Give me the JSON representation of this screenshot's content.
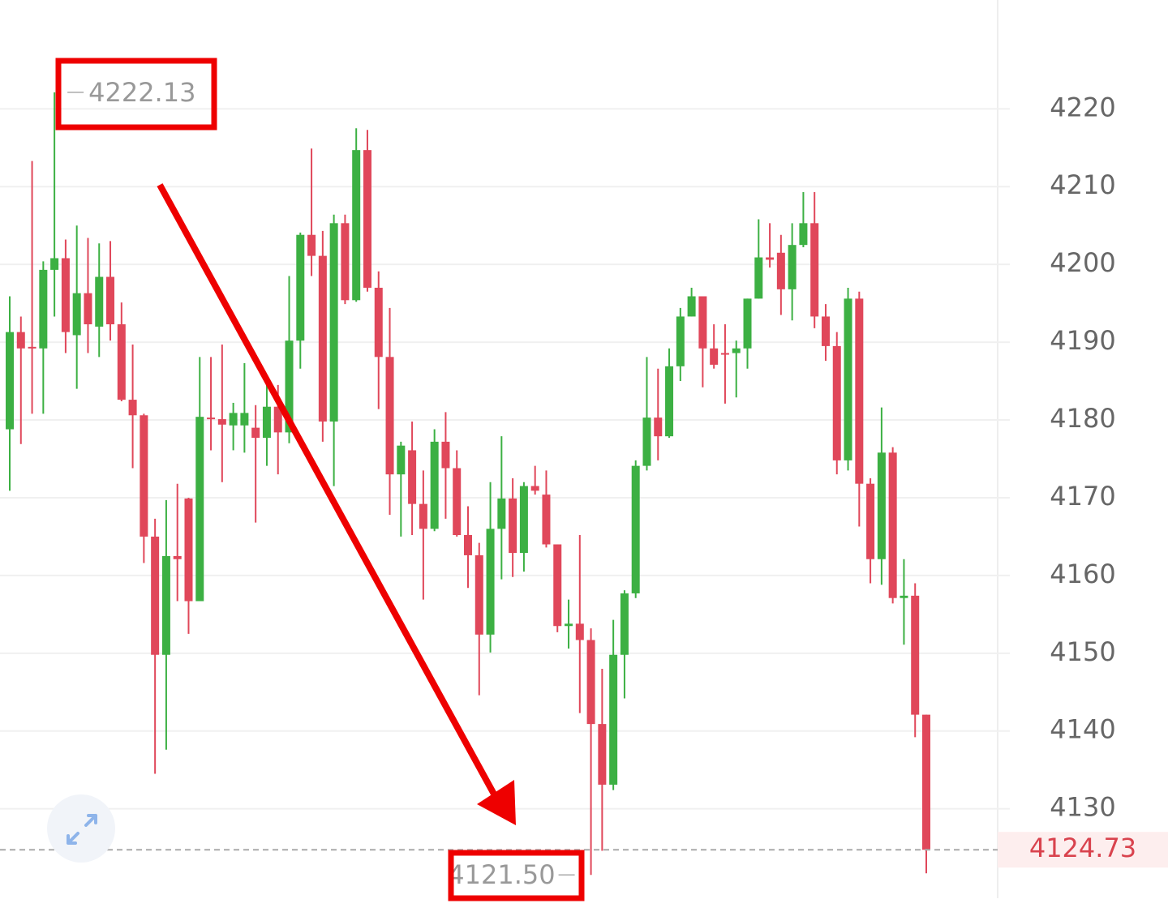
{
  "chart_data": {
    "type": "candlestick",
    "up_color": "#3cb043",
    "down_color": "#e0475a",
    "open": [
      4178.8,
      4191.3,
      4189.4,
      4189.2,
      4199.3,
      4200.8,
      4190.9,
      4196.3,
      4192,
      4198.4,
      4192.3,
      4182.6,
      4180.6,
      4165,
      4149.8,
      4162.5,
      4169.9,
      4156.7,
      4180.3,
      4180.1,
      4179.3,
      4179.3,
      4179,
      4177.7,
      4181.7,
      4178.4,
      4190.2,
      4203.8,
      4201.1,
      4179.8,
      4205.3,
      4195.4,
      4214.7,
      4197,
      4188.1,
      4173,
      4176.1,
      4169.2,
      4166,
      4177.2,
      4173.8,
      4165.2,
      4162.6,
      4152.4,
      4166,
      4169.9,
      4162.9,
      4171.5,
      4170.4,
      4164,
      4153.5,
      4153.8,
      4151.7,
      4140.9,
      4133.1,
      4149.8,
      4157.7,
      4174.1,
      4180.3,
      4177.9,
      4186.9,
      4193.3,
      4195.9,
      4189.2,
      4188.6,
      4188.6,
      4189.2,
      4195.6,
      4200.9,
      4201.5,
      4196.8,
      4202.5,
      4205.3,
      4193.3,
      4189.5,
      4174.8,
      4195.6,
      4171.8,
      4162.1,
      4175.8,
      4157.1,
      4157.4,
      4142.1
    ],
    "high": [
      4195.9,
      4193.3,
      4213.3,
      4200.4,
      4222.13,
      4203.2,
      4205,
      4203.4,
      4202.7,
      4203,
      4195.1,
      4189.7,
      4180.8,
      4167.3,
      4169.7,
      4171.8,
      4170,
      4188.1,
      4188.1,
      4189.7,
      4182.2,
      4187.3,
      4181.9,
      4185.2,
      4184.5,
      4198.5,
      4204.1,
      4214.9,
      4204.3,
      4206.4,
      4206.4,
      4217.5,
      4217.3,
      4199.1,
      4194.4,
      4177.2,
      4179.8,
      4173.5,
      4178.8,
      4181,
      4176.1,
      4168.9,
      4164.2,
      4172,
      4177.9,
      4172.5,
      4172,
      4174.1,
      4173.5,
      4164,
      4156.9,
      4165.2,
      4153.2,
      4148,
      4154.3,
      4158.1,
      4174.8,
      4188.1,
      4186.6,
      4189.2,
      4194.4,
      4197,
      4195.9,
      4192.3,
      4192.3,
      4190.2,
      4195.6,
      4205.8,
      4205.3,
      4203.8,
      4205.3,
      4209.3,
      4209.3,
      4194.9,
      4191.3,
      4197,
      4196.5,
      4172.5,
      4181.6,
      4176.5,
      4162.1,
      4159,
      4142.1
    ],
    "low": [
      4170.9,
      4176.9,
      4180.8,
      4180.8,
      4193.3,
      4188.6,
      4184,
      4188.6,
      4188.1,
      4190.2,
      4182.4,
      4173.8,
      4161.6,
      4134.5,
      4137.6,
      4156.7,
      4152.5,
      4156.7,
      4176.1,
      4172,
      4176.1,
      4175.8,
      4166.8,
      4174.1,
      4173,
      4177,
      4186.6,
      4198.5,
      4177.2,
      4171.5,
      4194.9,
      4195.2,
      4196.5,
      4181.4,
      4167.8,
      4165,
      4165.2,
      4156.9,
      4165.7,
      4167.3,
      4165,
      4158.4,
      4144.6,
      4150.1,
      4159.5,
      4159.8,
      4160.5,
      4170.4,
      4163.6,
      4152.7,
      4150.6,
      4142.3,
      4121.5,
      4124.6,
      4132.4,
      4144.2,
      4157.1,
      4173.5,
      4174.8,
      4177.7,
      4185,
      4193.3,
      4184.2,
      4186.6,
      4182.1,
      4182.9,
      4186.6,
      4195.6,
      4199.6,
      4193.5,
      4192.8,
      4202.2,
      4191.8,
      4187.6,
      4173,
      4173.5,
      4166.3,
      4159,
      4158.8,
      4156.4,
      4151.1,
      4139.2,
      4121.7
    ],
    "close": [
      4191.3,
      4189.2,
      4189.2,
      4199.3,
      4200.8,
      4191.3,
      4196.3,
      4192.3,
      4198.4,
      4192.3,
      4182.6,
      4180.6,
      4165,
      4149.8,
      4162.5,
      4162.1,
      4156.7,
      4180.4,
      4180.1,
      4179.4,
      4180.9,
      4180.9,
      4177.7,
      4181.7,
      4178.4,
      4190.2,
      4203.8,
      4201.1,
      4179.8,
      4205.3,
      4195.4,
      4214.7,
      4197,
      4188.1,
      4173,
      4176.7,
      4169.2,
      4166,
      4177.2,
      4173.8,
      4165.2,
      4162.6,
      4152.4,
      4166,
      4169.9,
      4162.9,
      4171.5,
      4170.9,
      4164,
      4153.5,
      4153.8,
      4151.7,
      4140.9,
      4133.1,
      4149.8,
      4157.7,
      4174.1,
      4180.3,
      4177.9,
      4186.9,
      4193.3,
      4195.9,
      4189.2,
      4187.1,
      4188.5,
      4189.2,
      4195.6,
      4200.9,
      4200.6,
      4196.8,
      4202.5,
      4205.3,
      4193.3,
      4189.5,
      4174.8,
      4195.6,
      4171.8,
      4162.1,
      4175.8,
      4157.1,
      4157.4,
      4142.1,
      4124.73
    ],
    "max_label": 4222.13,
    "min_label": {
      "value": 4121.5,
      "label": "4121.50"
    },
    "last_price": 4124.73,
    "ylim": [
      4118.5,
      4234
    ],
    "yticks": [
      4130,
      4140,
      4150,
      4160,
      4170,
      4180,
      4190,
      4200,
      4210,
      4220
    ],
    "grid": true
  }
}
